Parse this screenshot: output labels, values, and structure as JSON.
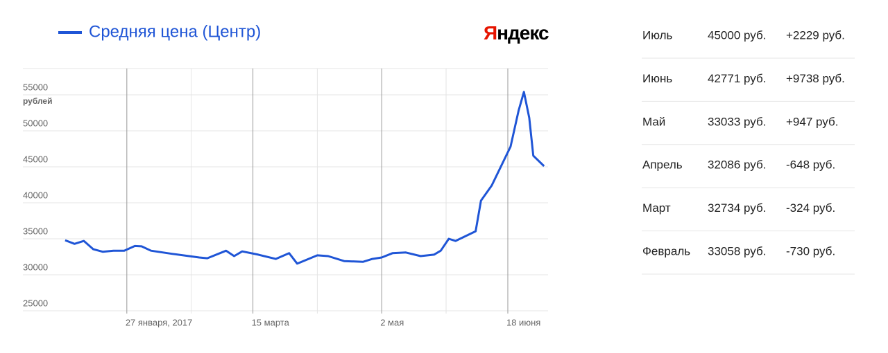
{
  "chart_data": {
    "type": "line",
    "legend": "Средняя цена (Центр)",
    "ylabel": "рублей",
    "x": [
      4,
      7.5,
      11,
      14.5,
      18,
      22,
      26,
      30,
      32.5,
      36,
      44,
      54,
      57,
      64,
      67,
      70,
      76,
      82.5,
      87.5,
      90.5,
      98,
      102,
      108,
      115,
      118.5,
      122,
      126,
      131,
      136.5,
      141.5,
      144,
      147,
      149.5,
      157,
      159,
      163,
      170,
      173,
      175,
      177,
      178.5,
      182.5
    ],
    "series": [
      {
        "name": "Средняя цена (Центр)",
        "color": "#1f55d6",
        "values": [
          34800,
          34300,
          34700,
          33550,
          33200,
          33350,
          33350,
          34000,
          33950,
          33350,
          32900,
          32400,
          32300,
          33350,
          32600,
          33250,
          32800,
          32200,
          33000,
          31550,
          32700,
          32600,
          31900,
          31800,
          32200,
          32400,
          33000,
          33100,
          32600,
          32800,
          33350,
          35000,
          34700,
          36050,
          40300,
          42400,
          47800,
          52800,
          55400,
          51800,
          46550,
          45100
        ]
      }
    ],
    "xlim": [
      3,
      184
    ],
    "xticks": [
      {
        "value": 27,
        "label": "27 января, 2017"
      },
      {
        "value": 74,
        "label": "15 марта"
      },
      {
        "value": 122,
        "label": "2 мая"
      },
      {
        "value": 169,
        "label": "18 июня"
      }
    ],
    "xminorgrid": [
      51,
      98,
      146
    ],
    "ylim": [
      25000,
      58500
    ],
    "yticks": [
      25000,
      30000,
      35000,
      40000,
      45000,
      50000,
      55000
    ],
    "grid": true
  },
  "logo": {
    "first": "Я",
    "rest": "ндекс"
  },
  "table": {
    "rows": [
      [
        "Июль",
        "45000 руб.",
        "+2229 руб."
      ],
      [
        "Июнь",
        "42771 руб.",
        "+9738 руб."
      ],
      [
        "Май",
        "33033 руб.",
        "+947 руб."
      ],
      [
        "Апрель",
        "32086 руб.",
        "-648 руб."
      ],
      [
        "Март",
        "32734 руб.",
        "-324 руб."
      ],
      [
        "Февраль",
        "33058 руб.",
        "-730 руб."
      ]
    ]
  }
}
